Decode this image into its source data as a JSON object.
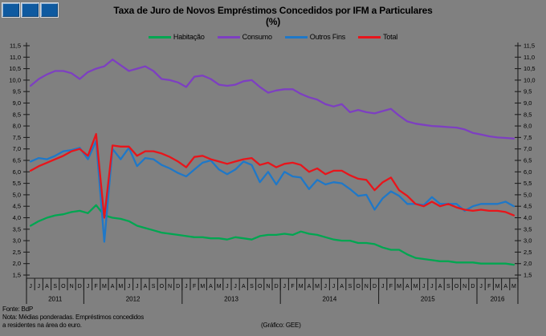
{
  "title": {
    "line1": "Taxa de Juro de Novos Empréstimos Concedidos por IFM a Particulares",
    "line2": "(%)"
  },
  "footer": {
    "source": "Fonte: BdP",
    "note1": "Nota: Médias ponderadas.  Empréstimos concedidos",
    "note2": "a residentes na área do euro.",
    "credit": "(Gráfico: GEE)"
  },
  "colors": {
    "background": "#808080",
    "axis": "#1f1f1f",
    "logo_blue": "#0f5aa0"
  },
  "chart_data": {
    "type": "line",
    "title": "Taxa de Juro de Novos Empréstimos Concedidos por IFM a Particulares (%)",
    "xlabel": "",
    "ylabel": "",
    "ylim": [
      1.5,
      11.5
    ],
    "y_tick_step": 0.5,
    "grid": false,
    "legend_position": "top",
    "y_tick_labels": [
      "11,5",
      "11,0",
      "10,5",
      "10,0",
      "9,5",
      "9,0",
      "8,5",
      "8,0",
      "7,5",
      "7,0",
      "6,5",
      "6,0",
      "5,5",
      "5,0",
      "4,5",
      "4,0",
      "3,5",
      "3,0",
      "2,5",
      "2,0",
      "1,5"
    ],
    "x_months": [
      "J",
      "J",
      "A",
      "S",
      "O",
      "N",
      "D",
      "J",
      "F",
      "M",
      "A",
      "M",
      "J",
      "J",
      "A",
      "S",
      "O",
      "N",
      "D",
      "J",
      "F",
      "M",
      "A",
      "M",
      "J",
      "J",
      "A",
      "S",
      "O",
      "N",
      "D",
      "J",
      "F",
      "M",
      "A",
      "M",
      "J",
      "J",
      "A",
      "S",
      "O",
      "N",
      "D",
      "J",
      "F",
      "M",
      "A",
      "M",
      "J",
      "J",
      "A",
      "S",
      "O",
      "N",
      "D",
      "J",
      "F",
      "M",
      "A",
      "M"
    ],
    "x_years": [
      {
        "label": "2011",
        "months": 7
      },
      {
        "label": "2012",
        "months": 12
      },
      {
        "label": "2013",
        "months": 12
      },
      {
        "label": "2014",
        "months": 12
      },
      {
        "label": "2015",
        "months": 12
      },
      {
        "label": "2016",
        "months": 5
      }
    ],
    "series": [
      {
        "key": "habitacao",
        "name": "Habitação",
        "color": "#00a651",
        "values": [
          3.65,
          3.85,
          4.0,
          4.1,
          4.15,
          4.25,
          4.3,
          4.2,
          4.55,
          4.1,
          4.0,
          3.95,
          3.85,
          3.65,
          3.55,
          3.45,
          3.35,
          3.3,
          3.25,
          3.2,
          3.15,
          3.15,
          3.1,
          3.1,
          3.05,
          3.15,
          3.1,
          3.05,
          3.2,
          3.25,
          3.25,
          3.3,
          3.25,
          3.4,
          3.3,
          3.25,
          3.15,
          3.05,
          3.0,
          3.0,
          2.9,
          2.9,
          2.85,
          2.7,
          2.6,
          2.6,
          2.4,
          2.25,
          2.2,
          2.15,
          2.1,
          2.1,
          2.05,
          2.05,
          2.05,
          2.0,
          2.0,
          2.0,
          2.0,
          1.95
        ]
      },
      {
        "key": "consumo",
        "name": "Consumo",
        "color": "#7d3fc1",
        "values": [
          9.75,
          10.05,
          10.25,
          10.4,
          10.4,
          10.3,
          10.05,
          10.35,
          10.5,
          10.6,
          10.9,
          10.65,
          10.4,
          10.5,
          10.6,
          10.4,
          10.05,
          10.0,
          9.9,
          9.7,
          10.15,
          10.2,
          10.05,
          9.8,
          9.75,
          9.8,
          9.95,
          10.0,
          9.7,
          9.45,
          9.55,
          9.6,
          9.6,
          9.4,
          9.25,
          9.15,
          8.95,
          8.85,
          8.95,
          8.6,
          8.7,
          8.6,
          8.55,
          8.65,
          8.75,
          8.45,
          8.2,
          8.1,
          8.05,
          8.0,
          7.98,
          7.95,
          7.93,
          7.85,
          7.7,
          7.63,
          7.55,
          7.5,
          7.48,
          7.45
        ]
      },
      {
        "key": "outros-fins",
        "name": "Outros Fins",
        "color": "#1f78c8",
        "values": [
          6.45,
          6.6,
          6.55,
          6.7,
          6.9,
          6.95,
          7.05,
          6.55,
          7.35,
          2.95,
          7.0,
          6.55,
          7.05,
          6.25,
          6.6,
          6.55,
          6.3,
          6.15,
          5.95,
          5.8,
          6.1,
          6.4,
          6.5,
          6.1,
          5.9,
          6.1,
          6.45,
          6.3,
          5.55,
          6.0,
          5.45,
          6.0,
          5.8,
          5.75,
          5.25,
          5.65,
          5.45,
          5.55,
          5.5,
          5.25,
          4.95,
          5.0,
          4.35,
          4.85,
          5.15,
          4.95,
          4.6,
          4.6,
          4.55,
          4.9,
          4.6,
          4.6,
          4.6,
          4.3,
          4.5,
          4.6,
          4.6,
          4.6,
          4.7,
          4.5
        ]
      },
      {
        "key": "total",
        "name": "Total",
        "color": "#e8151b",
        "values": [
          6.05,
          6.25,
          6.4,
          6.55,
          6.7,
          6.9,
          7.0,
          6.7,
          7.65,
          4.0,
          7.15,
          7.1,
          7.1,
          6.7,
          6.9,
          6.9,
          6.8,
          6.65,
          6.45,
          6.2,
          6.65,
          6.7,
          6.55,
          6.45,
          6.35,
          6.45,
          6.55,
          6.6,
          6.3,
          6.4,
          6.2,
          6.35,
          6.4,
          6.3,
          6.0,
          6.15,
          5.9,
          6.05,
          6.05,
          5.85,
          5.7,
          5.65,
          5.2,
          5.55,
          5.75,
          5.2,
          4.95,
          4.6,
          4.5,
          4.7,
          4.5,
          4.6,
          4.45,
          4.35,
          4.3,
          4.35,
          4.3,
          4.3,
          4.25,
          4.1
        ]
      }
    ]
  }
}
